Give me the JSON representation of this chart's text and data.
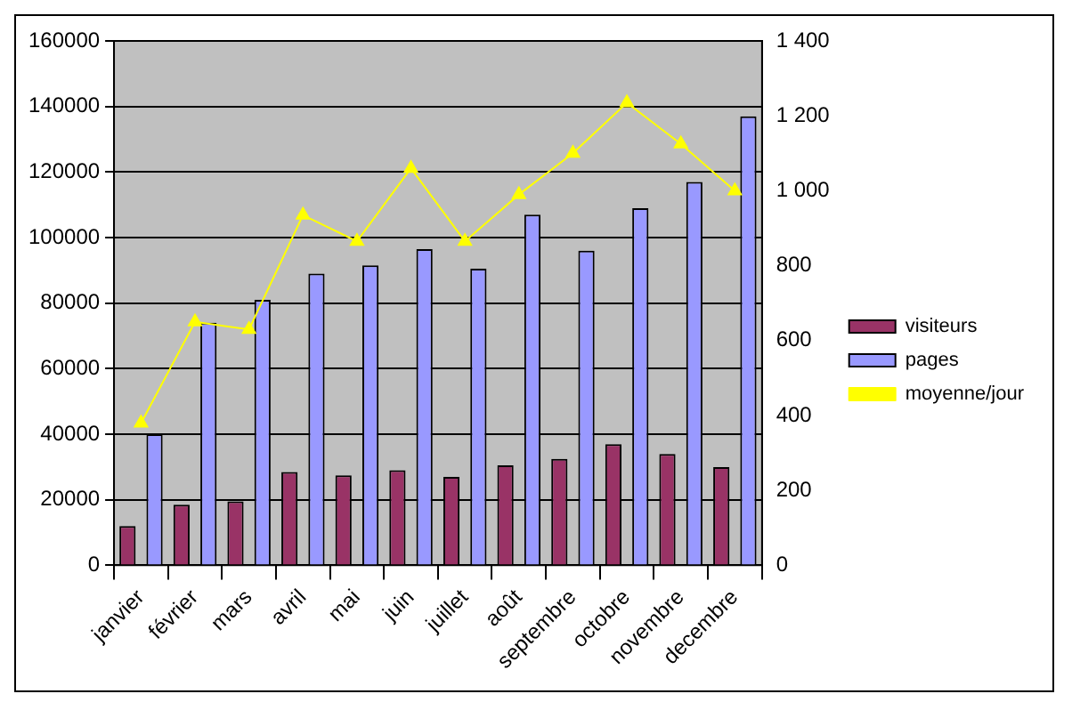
{
  "chart_data": {
    "type": "bar",
    "categories": [
      "janvier",
      "février",
      "mars",
      "avril",
      "mai",
      "juin",
      "juillet",
      "août",
      "septembre",
      "octobre",
      "novembre",
      "decembre"
    ],
    "series": [
      {
        "name": "visiteurs",
        "color": "#993366",
        "values": [
          12000,
          18500,
          19500,
          28500,
          27500,
          29000,
          27000,
          30500,
          32500,
          37000,
          34000,
          30000
        ]
      },
      {
        "name": "pages",
        "color": "#9999ff",
        "values": [
          40000,
          74000,
          81000,
          89000,
          91500,
          96500,
          90500,
          107000,
          96000,
          109000,
          117000,
          137000
        ]
      },
      {
        "name": "moyenne/jour",
        "type": "line",
        "axis": "y2",
        "color": "#ffff00",
        "marker": "triangle",
        "values": [
          380,
          650,
          630,
          935,
          865,
          1060,
          865,
          990,
          1100,
          1235,
          1125,
          1000
        ]
      }
    ],
    "ylim": [
      0,
      160000
    ],
    "yticks": [
      0,
      20000,
      40000,
      60000,
      80000,
      100000,
      120000,
      140000,
      160000
    ],
    "y2lim": [
      0,
      1400
    ],
    "y2ticks": [
      0,
      {
        "value": 200,
        "label": "200"
      },
      {
        "value": 400,
        "label": "400"
      },
      {
        "value": 600,
        "label": "600"
      },
      {
        "value": 800,
        "label": "800"
      },
      {
        "value": 1000,
        "label": "1 000"
      },
      {
        "value": 1200,
        "label": "1 200"
      },
      {
        "value": 1400,
        "label": "1 400"
      }
    ],
    "grid": "y",
    "legend": "right"
  }
}
